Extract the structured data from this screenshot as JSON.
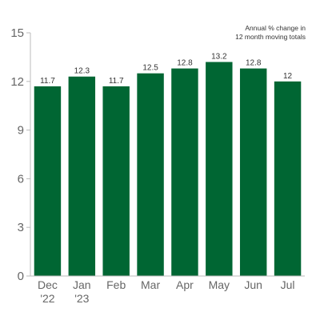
{
  "chart_data": {
    "type": "bar",
    "annotation_lines": [
      "Annual % change in",
      "12 month moving totals"
    ],
    "categories": [
      [
        "Dec",
        "'22"
      ],
      [
        "Jan",
        "'23"
      ],
      [
        "Feb"
      ],
      [
        "Mar"
      ],
      [
        "Apr"
      ],
      [
        "May"
      ],
      [
        "Jun"
      ],
      [
        "Jul"
      ]
    ],
    "values": [
      11.7,
      12.3,
      11.7,
      12.5,
      12.8,
      13.2,
      12.8,
      12
    ],
    "value_labels": [
      "11.7",
      "12.3",
      "11.7",
      "12.5",
      "12.8",
      "13.2",
      "12.8",
      "12"
    ],
    "ylim": [
      0,
      15
    ],
    "yticks": [
      0,
      3,
      6,
      9,
      12,
      15
    ],
    "grid": false,
    "colors": {
      "bar": "#006633",
      "axis": "#bbbbbb"
    }
  }
}
